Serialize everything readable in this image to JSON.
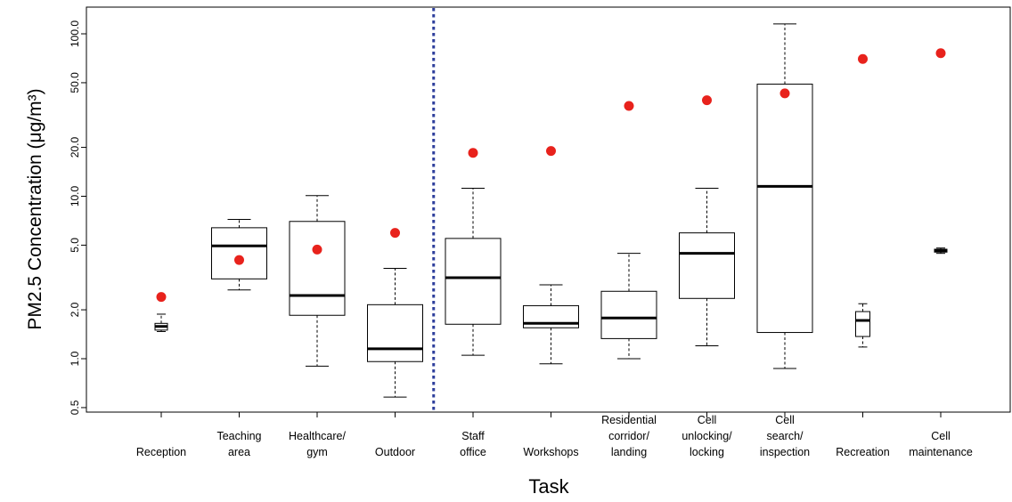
{
  "chart_data": {
    "type": "box",
    "xlabel": "Task",
    "ylabel": "PM2.5 Concentration (μg/m³)",
    "y_scale": "log",
    "ylim": [
      0.45,
      140
    ],
    "yticks": [
      {
        "value": 0.5,
        "label": "0.5"
      },
      {
        "value": 1,
        "label": "1.0"
      },
      {
        "value": 2,
        "label": "2.0"
      },
      {
        "value": 5,
        "label": "5.0"
      },
      {
        "value": 10,
        "label": "10.0"
      },
      {
        "value": 20,
        "label": "20.0"
      },
      {
        "value": 50,
        "label": "50.0"
      },
      {
        "value": 100,
        "label": "100.0"
      }
    ],
    "grid": false,
    "legend": "none",
    "divider_after_category": 4,
    "colors": {
      "point": "#e8221c",
      "divider": "#2e3f9c",
      "box": "#000000"
    },
    "categories": [
      {
        "label": [
          "Reception"
        ],
        "whisker_low": 1.47,
        "q1": 1.5,
        "median": 1.58,
        "q3": 1.65,
        "whisker_high": 1.88,
        "point": 2.4
      },
      {
        "label": [
          "Teaching",
          "area"
        ],
        "whisker_low": 2.65,
        "q1": 3.1,
        "median": 4.95,
        "q3": 6.4,
        "whisker_high": 7.2,
        "point": 4.05
      },
      {
        "label": [
          "Healthcare/",
          "gym"
        ],
        "whisker_low": 0.9,
        "q1": 1.85,
        "median": 2.45,
        "q3": 7.0,
        "whisker_high": 10.1,
        "point": 4.7
      },
      {
        "label": [
          "Outdoor"
        ],
        "whisker_low": 0.58,
        "q1": 0.96,
        "median": 1.15,
        "q3": 2.15,
        "whisker_high": 3.6,
        "point": 5.95
      },
      {
        "label": [
          "Staff",
          "office"
        ],
        "whisker_low": 1.05,
        "q1": 1.63,
        "median": 3.15,
        "q3": 5.5,
        "whisker_high": 11.2,
        "point": 18.5
      },
      {
        "label": [
          "Workshops"
        ],
        "whisker_low": 0.93,
        "q1": 1.55,
        "median": 1.65,
        "q3": 2.12,
        "whisker_high": 2.85,
        "point": 19.0
      },
      {
        "label": [
          "Residential",
          "corridor/",
          "landing"
        ],
        "whisker_low": 1.0,
        "q1": 1.33,
        "median": 1.78,
        "q3": 2.6,
        "whisker_high": 4.45,
        "point": 36.0
      },
      {
        "label": [
          "Cell",
          "unlocking/",
          "locking"
        ],
        "whisker_low": 1.2,
        "q1": 2.35,
        "median": 4.45,
        "q3": 5.95,
        "whisker_high": 11.2,
        "point": 39.0
      },
      {
        "label": [
          "Cell",
          "search/",
          "inspection"
        ],
        "whisker_low": 0.87,
        "q1": 1.45,
        "median": 11.5,
        "q3": 49.0,
        "whisker_high": 115.0,
        "point": 43.0
      },
      {
        "label": [
          "Recreation"
        ],
        "whisker_low": 1.18,
        "q1": 1.37,
        "median": 1.72,
        "q3": 1.95,
        "whisker_high": 2.18,
        "point": 70.0
      },
      {
        "label": [
          "Cell",
          "maintenance"
        ],
        "whisker_low": 4.45,
        "q1": 4.53,
        "median": 4.62,
        "q3": 4.72,
        "whisker_high": 4.8,
        "point": 76.0
      }
    ]
  }
}
